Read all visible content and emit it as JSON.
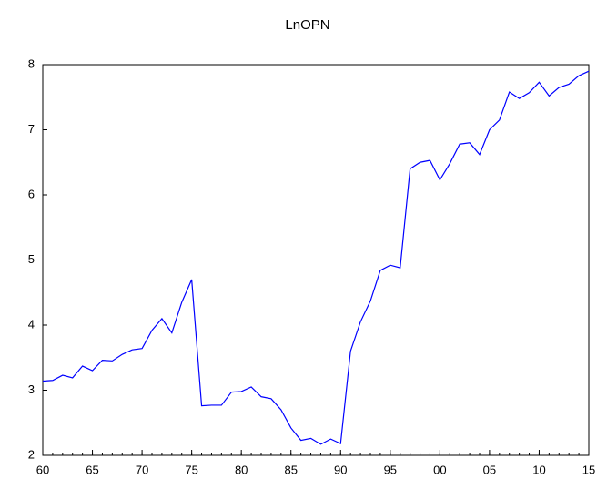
{
  "chart_data": {
    "type": "line",
    "title": "LnOPN",
    "x": [
      1960,
      1961,
      1962,
      1963,
      1964,
      1965,
      1966,
      1967,
      1968,
      1969,
      1970,
      1971,
      1972,
      1973,
      1974,
      1975,
      1976,
      1977,
      1978,
      1979,
      1980,
      1981,
      1982,
      1983,
      1984,
      1985,
      1986,
      1987,
      1988,
      1989,
      1990,
      1991,
      1992,
      1993,
      1994,
      1995,
      1996,
      1997,
      1998,
      1999,
      2000,
      2001,
      2002,
      2003,
      2004,
      2005,
      2006,
      2007,
      2008,
      2009,
      2010,
      2011,
      2012,
      2013,
      2014,
      2015
    ],
    "series": [
      {
        "name": "LnOPN",
        "color": "#0000ff",
        "values": [
          3.14,
          3.15,
          3.23,
          3.19,
          3.37,
          3.3,
          3.46,
          3.45,
          3.55,
          3.62,
          3.64,
          3.92,
          4.1,
          3.88,
          4.35,
          4.7,
          2.76,
          2.77,
          2.77,
          2.97,
          2.98,
          3.05,
          2.9,
          2.87,
          2.7,
          2.42,
          2.23,
          2.26,
          2.17,
          2.25,
          2.18,
          3.6,
          4.05,
          4.37,
          4.84,
          4.92,
          4.88,
          6.4,
          6.5,
          6.53,
          6.23,
          6.48,
          6.78,
          6.8,
          6.62,
          7.0,
          7.15,
          7.58,
          7.48,
          7.57,
          7.73,
          7.52,
          7.65,
          7.7,
          7.83,
          7.9
        ]
      }
    ],
    "xlim": [
      1960,
      2015
    ],
    "xticks": [
      {
        "value": 1960,
        "label": "60"
      },
      {
        "value": 1965,
        "label": "65"
      },
      {
        "value": 1970,
        "label": "70"
      },
      {
        "value": 1975,
        "label": "75"
      },
      {
        "value": 1980,
        "label": "80"
      },
      {
        "value": 1985,
        "label": "85"
      },
      {
        "value": 1990,
        "label": "90"
      },
      {
        "value": 1995,
        "label": "95"
      },
      {
        "value": 2000,
        "label": "00"
      },
      {
        "value": 2005,
        "label": "05"
      },
      {
        "value": 2010,
        "label": "10"
      },
      {
        "value": 2015,
        "label": "15"
      }
    ],
    "ylim": [
      2,
      8
    ],
    "yticks": [
      2,
      3,
      4,
      5,
      6,
      7,
      8
    ]
  }
}
